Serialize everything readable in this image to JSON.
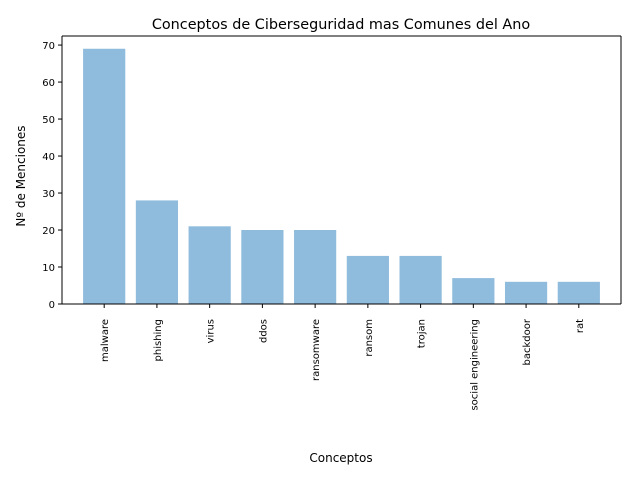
{
  "chart_data": {
    "type": "bar",
    "title": "Conceptos de Ciberseguridad mas Comunes del Ano",
    "xlabel": "Conceptos",
    "ylabel": "Nº de Menciones",
    "categories": [
      "malware",
      "phishing",
      "virus",
      "ddos",
      "ransomware",
      "ransom",
      "trojan",
      "social engineering",
      "backdoor",
      "rat"
    ],
    "values": [
      69,
      28,
      21,
      20,
      20,
      13,
      13,
      7,
      6,
      6
    ],
    "ylim": [
      0,
      72.45
    ],
    "yticks": [
      0,
      10,
      20,
      30,
      40,
      50,
      60,
      70
    ],
    "bar_color": "#8fbbdc",
    "grid": false,
    "legend": "none"
  }
}
